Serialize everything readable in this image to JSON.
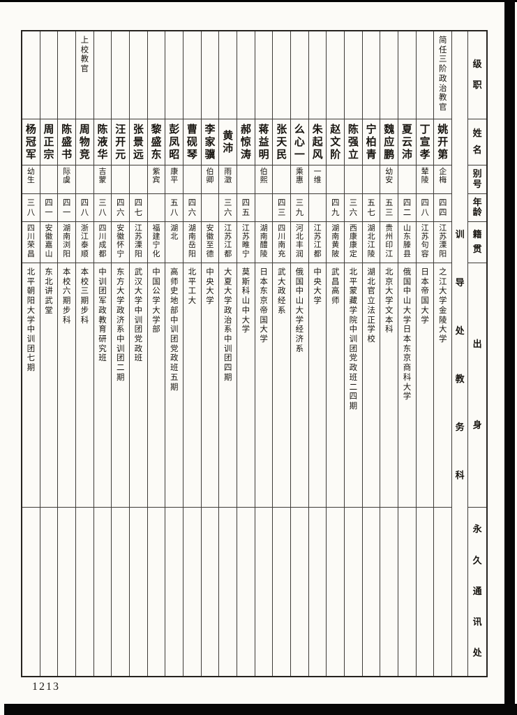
{
  "page_number": "1213",
  "section_title": "训导处教务科",
  "row_labels": [
    "级职",
    "姓名",
    "别号",
    "年龄",
    "籍贯",
    "出身",
    "永久通讯处"
  ],
  "colors": {
    "paper": "#fcfbf7",
    "grid_line": "#3d3a36",
    "ink": "#17140f",
    "scan_border": "#060606"
  },
  "people": [
    {
      "rank": "简任三阶政治教官",
      "name": "姚开第",
      "alias": "企梅",
      "age": "四四",
      "native_place": "江苏溧阳",
      "background": "之江大学金陵大学",
      "address": ""
    },
    {
      "rank": "",
      "name": "丁宣孝",
      "alias": "辇陵",
      "age": "四八",
      "native_place": "江苏句容",
      "background": "日本帝国大学",
      "address": ""
    },
    {
      "rank": "",
      "name": "夏云沛",
      "alias": "",
      "age": "四二",
      "native_place": "山东滕县",
      "background": "俄国中山大学日本东京商科大学",
      "address": ""
    },
    {
      "rank": "",
      "name": "魏应鹏",
      "alias": "幼安",
      "age": "五三",
      "native_place": "贵州印江",
      "background": "北京大学文本科",
      "address": ""
    },
    {
      "rank": "",
      "name": "宁柏青",
      "alias": "",
      "age": "五七",
      "native_place": "湖北江陵",
      "background": "湖北官立法正学校",
      "address": ""
    },
    {
      "rank": "",
      "name": "陈强立",
      "alias": "",
      "age": "三六",
      "native_place": "西康康定",
      "background": "北平蒙藏学院中训团党政班二四期",
      "address": ""
    },
    {
      "rank": "",
      "name": "赵文阶",
      "alias": "",
      "age": "四九",
      "native_place": "湖南黄陂",
      "background": "武昌高师",
      "address": ""
    },
    {
      "rank": "",
      "name": "朱起风",
      "alias": "一维",
      "age": "",
      "native_place": "江苏江都",
      "background": "中央大学",
      "address": ""
    },
    {
      "rank": "",
      "name": "么心一",
      "alias": "乘惠",
      "age": "三九",
      "native_place": "河北丰润",
      "background": "俄国中山大学经济系",
      "address": ""
    },
    {
      "rank": "",
      "name": "张天民",
      "alias": "",
      "age": "四三",
      "native_place": "四川南充",
      "background": "武大政经系",
      "address": ""
    },
    {
      "rank": "",
      "name": "蒋益明",
      "alias": "伯熙",
      "age": "",
      "native_place": "湖南醴陵",
      "background": "日本东京帝国大学",
      "address": ""
    },
    {
      "rank": "",
      "name": "郝惊涛",
      "alias": "",
      "age": "四五",
      "native_place": "江苏睢宁",
      "background": "莫斯科山中大学",
      "address": ""
    },
    {
      "rank": "",
      "name": "黄沛",
      "alias": "雨澂",
      "age": "三六",
      "native_place": "江苏江都",
      "background": "大夏大学政治系中训团四期",
      "address": ""
    },
    {
      "rank": "",
      "name": "李家骥",
      "alias": "伯卿",
      "age": "",
      "native_place": "安徽至德",
      "background": "中央大学",
      "address": ""
    },
    {
      "rank": "",
      "name": "曹砚琴",
      "alias": "",
      "age": "四六",
      "native_place": "湖南岳阳",
      "background": "北平工大",
      "address": ""
    },
    {
      "rank": "",
      "name": "彭凤昭",
      "alias": "康平",
      "age": "五八",
      "native_place": "湖北",
      "background": "高师史地部中训团党政班五期",
      "address": ""
    },
    {
      "rank": "",
      "name": "黎盛东",
      "alias": "紫宾",
      "age": "",
      "native_place": "福建宁化",
      "background": "中国公学大学部",
      "address": ""
    },
    {
      "rank": "",
      "name": "张景远",
      "alias": "",
      "age": "四七",
      "native_place": "江苏溧阳",
      "background": "武汉大学中训团党政班",
      "address": ""
    },
    {
      "rank": "",
      "name": "汪开元",
      "alias": "",
      "age": "四六",
      "native_place": "安徽怀宁",
      "background": "东方大学政济系中训团二期",
      "address": ""
    },
    {
      "rank": "",
      "name": "陈液华",
      "alias": "吉蒙",
      "age": "三八",
      "native_place": "四川成都",
      "background": "中训团军政教育研究班",
      "address": ""
    },
    {
      "rank": "上校教官",
      "name": "周物竞",
      "alias": "",
      "age": "四八",
      "native_place": "浙江泰顺",
      "background": "本校三期步科",
      "address": ""
    },
    {
      "rank": "",
      "name": "陈盛书",
      "alias": "际虞",
      "age": "四一",
      "native_place": "湖南浏阳",
      "background": "本校六期步科",
      "address": ""
    },
    {
      "rank": "",
      "name": "周正宗",
      "alias": "",
      "age": "四一",
      "native_place": "安徽嘉山",
      "background": "东北讲武堂",
      "address": ""
    },
    {
      "rank": "",
      "name": "杨冠军",
      "alias": "幼生",
      "age": "三八",
      "native_place": "四川荣昌",
      "background": "北平朝阳大学中训团七期",
      "address": ""
    }
  ]
}
